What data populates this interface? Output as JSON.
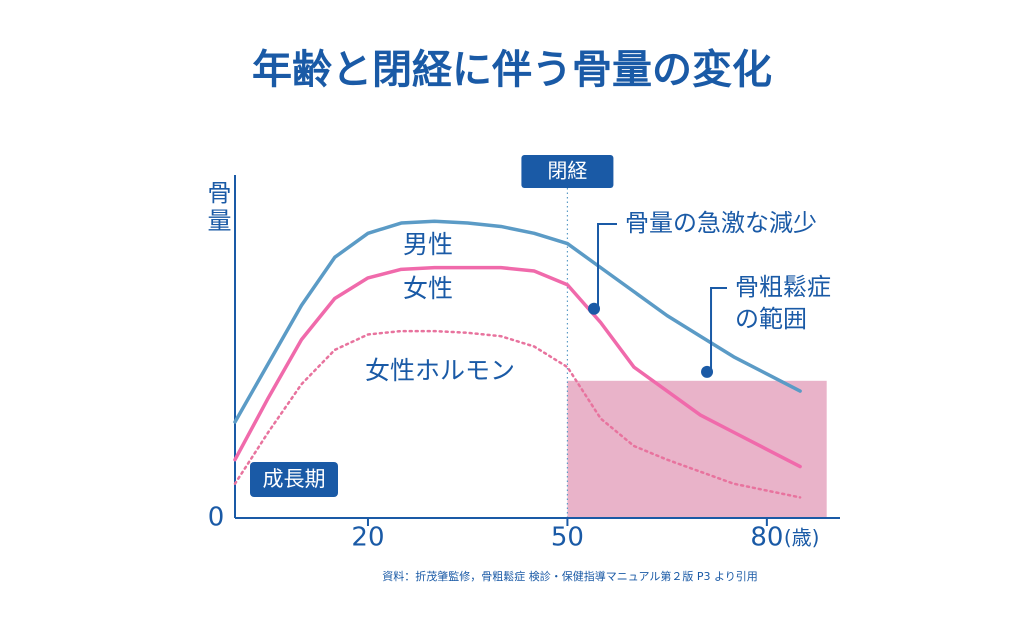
{
  "chart_data": {
    "type": "line",
    "title": "年齢と閉経に伴う骨量の変化",
    "y_label": "骨量",
    "x_unit": "(歳)",
    "x": [
      0,
      5,
      10,
      15,
      20,
      25,
      30,
      35,
      40,
      45,
      50,
      55,
      60,
      65,
      70,
      75,
      80,
      85
    ],
    "series": [
      {
        "name": "男性",
        "color": "#5b9bc6",
        "style": "solid",
        "values": [
          28,
          45,
          62,
          76,
          83,
          86,
          86.5,
          86,
          85,
          83,
          80,
          73,
          66,
          59,
          53,
          47,
          42,
          37
        ]
      },
      {
        "name": "女性",
        "color": "#f06aab",
        "style": "solid",
        "values": [
          17,
          35,
          52,
          64,
          70,
          72.5,
          73,
          73,
          73,
          72,
          68,
          57,
          44,
          37,
          30,
          25,
          20,
          15
        ]
      },
      {
        "name": "女性ホルモン",
        "color": "#e8739e",
        "style": "dotted",
        "values": [
          10,
          25,
          39,
          49,
          53.5,
          54.5,
          54.5,
          54,
          53,
          50,
          44,
          29,
          21,
          17,
          13.5,
          10,
          8,
          6
        ]
      }
    ],
    "xlim": [
      0,
      91
    ],
    "xticks": [
      20,
      50,
      80
    ],
    "ylim": [
      0,
      100
    ],
    "yticks": [
      0
    ],
    "menopause": {
      "label": "閉経",
      "x": 50
    },
    "osteoporosis_range": {
      "x": [
        50,
        89
      ],
      "y": [
        0,
        40
      ],
      "color": "#e9b3c9"
    },
    "annotations": [
      {
        "lines": [
          "骨量の急激な減少"
        ],
        "x": 54,
        "y": 61
      },
      {
        "lines": [
          "骨粗鬆症",
          "の範囲"
        ],
        "x": 71,
        "y": 42.6
      }
    ],
    "growth_label": "成長期",
    "source": "資料：折茂肇監修，骨粗鬆症 検診・保健指導マニュアル第２版 P3 より引用"
  }
}
